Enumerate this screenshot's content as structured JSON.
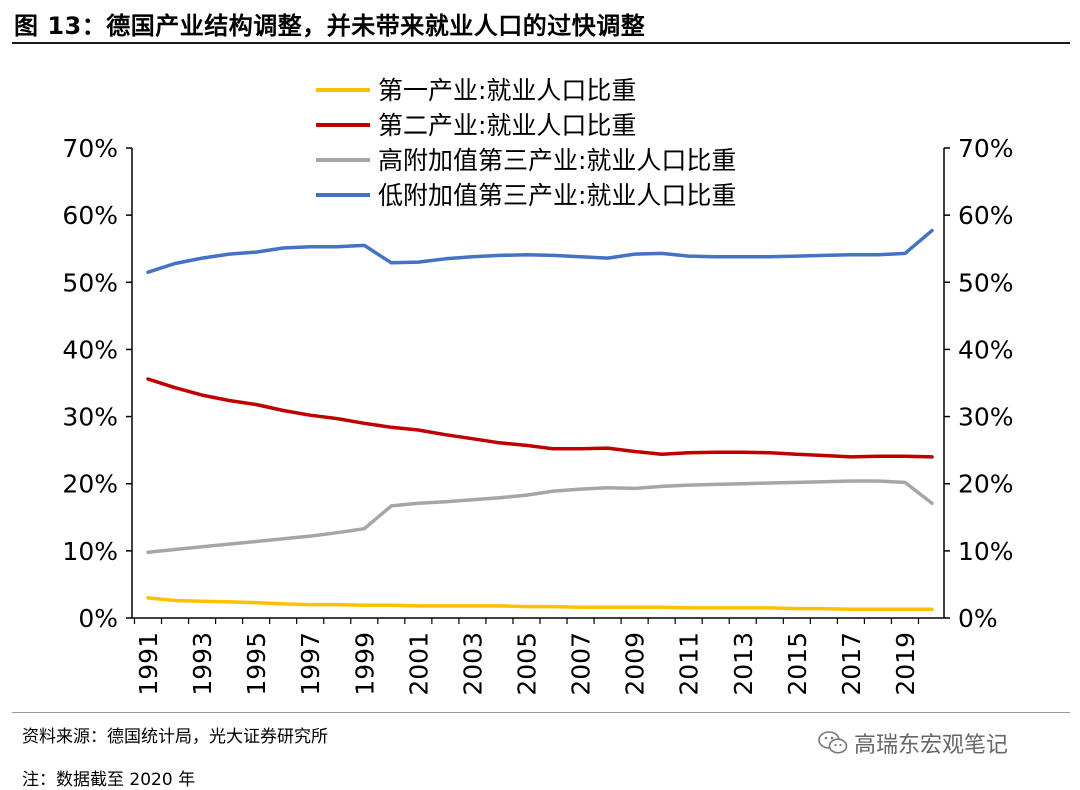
{
  "header": {
    "title": "图 13：德国产业结构调整，并未带来就业人口的过快调整"
  },
  "footer": {
    "source": "资料来源：德国统计局，光大证券研究所",
    "note": "注：数据截至 2020 年",
    "watermark": "高瑞东宏观笔记",
    "watermark_icon": "wechat-icon"
  },
  "chart_data": {
    "type": "line",
    "title": "",
    "xlabel": "",
    "ylabel": "",
    "x": [
      1991,
      1992,
      1993,
      1994,
      1995,
      1996,
      1997,
      1998,
      1999,
      2000,
      2001,
      2002,
      2003,
      2004,
      2005,
      2006,
      2007,
      2008,
      2009,
      2010,
      2011,
      2012,
      2013,
      2014,
      2015,
      2016,
      2017,
      2018,
      2019,
      2020
    ],
    "x_tick_labels": [
      "1991",
      "1993",
      "1995",
      "1997",
      "1999",
      "2001",
      "2003",
      "2005",
      "2007",
      "2009",
      "2011",
      "2013",
      "2015",
      "2017",
      "2019"
    ],
    "ylim": [
      0,
      70
    ],
    "y_ticks": [
      0,
      10,
      20,
      30,
      40,
      50,
      60,
      70
    ],
    "y_tick_labels": [
      "0%",
      "10%",
      "20%",
      "30%",
      "40%",
      "50%",
      "60%",
      "70%"
    ],
    "secondary_y_tick_labels": [
      "0%",
      "10%",
      "20%",
      "30%",
      "40%",
      "50%",
      "60%",
      "70%"
    ],
    "grid": false,
    "legend_position": "top-center",
    "series": [
      {
        "name": "第一产业:就业人口比重",
        "color": "#FFC000",
        "values": [
          3.0,
          2.6,
          2.5,
          2.4,
          2.3,
          2.1,
          2.0,
          2.0,
          1.9,
          1.9,
          1.8,
          1.8,
          1.8,
          1.8,
          1.7,
          1.7,
          1.6,
          1.6,
          1.6,
          1.6,
          1.5,
          1.5,
          1.5,
          1.5,
          1.4,
          1.4,
          1.3,
          1.3,
          1.3,
          1.3
        ]
      },
      {
        "name": "第二产业:就业人口比重",
        "color": "#C00000",
        "values": [
          35.6,
          34.3,
          33.2,
          32.4,
          31.8,
          30.9,
          30.2,
          29.7,
          29.0,
          28.4,
          28.0,
          27.3,
          26.7,
          26.1,
          25.7,
          25.2,
          25.2,
          25.3,
          24.8,
          24.4,
          24.6,
          24.7,
          24.7,
          24.6,
          24.4,
          24.2,
          24.0,
          24.1,
          24.1,
          24.0
        ]
      },
      {
        "name": "高附加值第三产业:就业人口比重",
        "color": "#A6A6A6",
        "values": [
          9.8,
          10.2,
          10.6,
          11.0,
          11.4,
          11.8,
          12.2,
          12.7,
          13.3,
          16.7,
          17.1,
          17.3,
          17.6,
          17.9,
          18.3,
          18.9,
          19.2,
          19.4,
          19.3,
          19.6,
          19.8,
          19.9,
          20.0,
          20.1,
          20.2,
          20.3,
          20.4,
          20.4,
          20.2,
          17.1
        ]
      },
      {
        "name": "低附加值第三产业:就业人口比重",
        "color": "#4472C4",
        "values": [
          51.5,
          52.8,
          53.6,
          54.2,
          54.5,
          55.1,
          55.3,
          55.3,
          55.5,
          52.9,
          53.0,
          53.5,
          53.8,
          54.0,
          54.1,
          54.0,
          53.8,
          53.6,
          54.2,
          54.3,
          53.9,
          53.8,
          53.8,
          53.8,
          53.9,
          54.0,
          54.1,
          54.1,
          54.3,
          57.7
        ]
      }
    ]
  }
}
